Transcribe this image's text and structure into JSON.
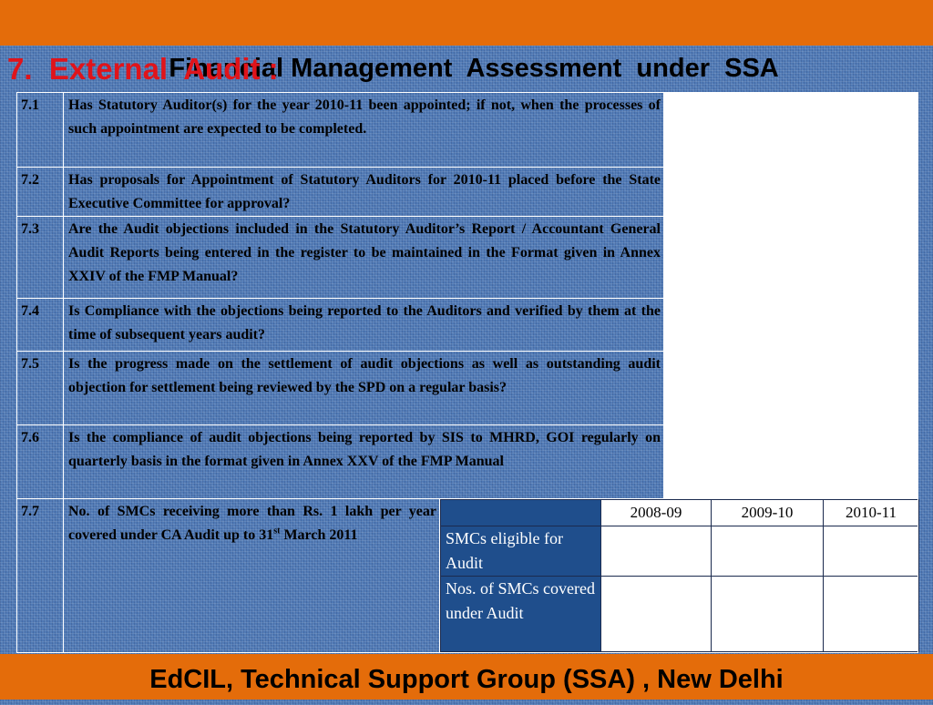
{
  "header": {
    "title": "Financial Management  Assessment  under  SSA"
  },
  "section": {
    "heading": "7.  External  Audit :"
  },
  "rows": [
    {
      "num": "7.1",
      "question": "Has Statutory Auditor(s) for the year 2010-11 been appointed; if not, when the processes of such appointment are expected to be completed."
    },
    {
      "num": "7.2",
      "question": "Has proposals for Appointment of Statutory Auditors for 2010-11 placed before the State Executive Committee for approval?"
    },
    {
      "num": "7.3",
      "question": "Are the Audit objections included in the Statutory Auditor’s Report / Accountant General Audit Reports being entered in the register to be maintained in the Format given in Annex XXIV of the FMP Manual?"
    },
    {
      "num": "7.4",
      "question": "Is Compliance with the objections being reported to the Auditors and verified by them at the time of subsequent years audit?"
    },
    {
      "num": "7.5",
      "question": "Is the progress made on the settlement of audit objections as well as outstanding audit objection for settlement being reviewed by the SPD on a regular basis?"
    },
    {
      "num": "7.6",
      "question": "Is the compliance of audit objections being reported by SIS to MHRD, GOI regularly on quarterly basis in the format given in Annex XXV of the FMP Manual"
    }
  ],
  "row77": {
    "num": "7.7",
    "question_part1": "No. of SMCs receiving more than Rs. 1 lakh per year covered under CA Audit up to 31",
    "question_sup": "st",
    "question_part2": " March 2011",
    "years": [
      "2008-09",
      "2009-10",
      "2010-11"
    ],
    "labels": [
      "SMCs eligible for Audit",
      "Nos. of SMCs covered under Audit"
    ]
  },
  "footer": {
    "text": "EdCIL, Technical Support Group (SSA) , New Delhi"
  },
  "colors": {
    "bar": "#e46c0a",
    "heading": "#e0141b",
    "background": "#4f79b5",
    "label_cell": "#1f4e8c"
  }
}
